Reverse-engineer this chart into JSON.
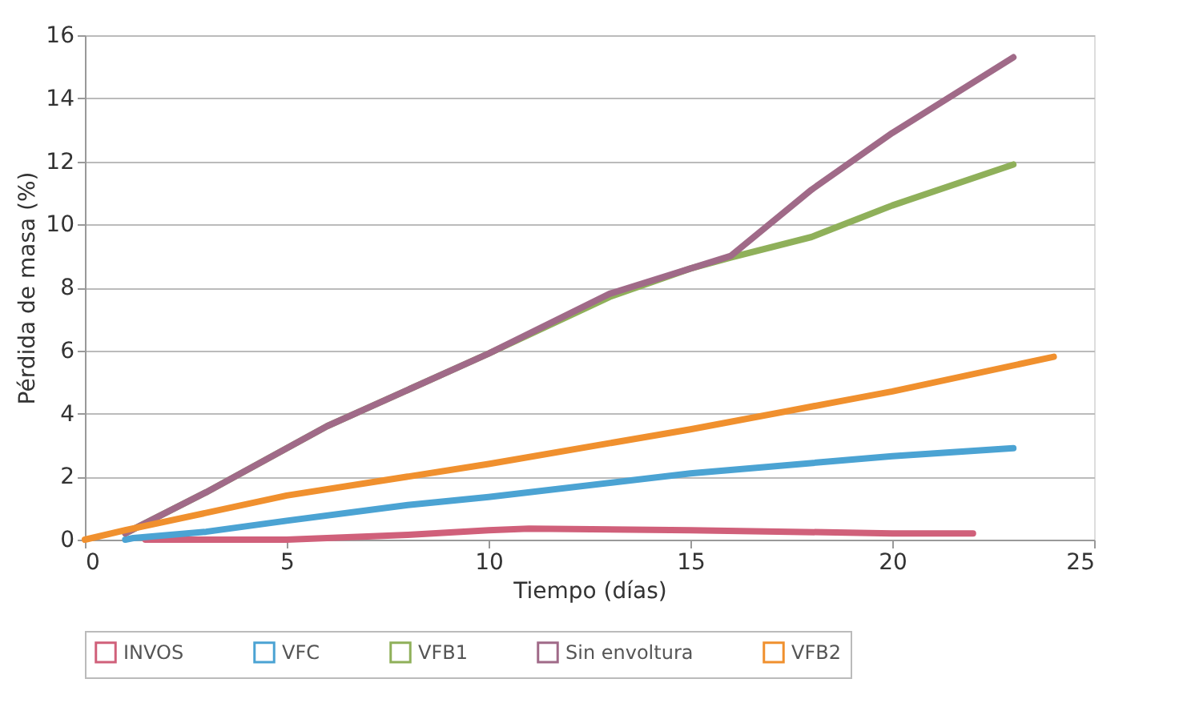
{
  "chart_data": {
    "type": "line",
    "xlabel": "Tiempo (días)",
    "ylabel": "Pérdida de masa (%)",
    "xlim": [
      0,
      25
    ],
    "xticks": [
      0,
      5,
      10,
      15,
      20,
      25
    ],
    "ylim": [
      0,
      16
    ],
    "yticks": [
      0,
      2,
      4,
      6,
      8,
      10,
      12,
      14,
      16
    ],
    "grid": "y",
    "legend": "bottom",
    "line_style": "solid",
    "marker": "none",
    "series": [
      {
        "name": "INVOS",
        "color": "#d0607a",
        "x": [
          1.5,
          3,
          5,
          8,
          10,
          11,
          15,
          20,
          22
        ],
        "values": [
          0,
          0,
          0,
          0.15,
          0.3,
          0.35,
          0.3,
          0.2,
          0.2
        ]
      },
      {
        "name": "VFC",
        "color": "#4ba3d3",
        "x": [
          1,
          1.2,
          3,
          5,
          8,
          10,
          15,
          20,
          23
        ],
        "values": [
          0,
          0.05,
          0.25,
          0.6,
          1.1,
          1.35,
          2.1,
          2.65,
          2.9
        ]
      },
      {
        "name": "VFB1",
        "color": "#8fb05a",
        "x": [
          1,
          3,
          6,
          10,
          13,
          15,
          16,
          18,
          20,
          23
        ],
        "values": [
          0.2,
          1.5,
          3.6,
          5.9,
          7.7,
          8.6,
          8.95,
          9.6,
          10.6,
          11.9
        ]
      },
      {
        "name": "Sin envoltura",
        "color": "#a06a88",
        "x": [
          1,
          3,
          6,
          10,
          13,
          15,
          16,
          18,
          20,
          23
        ],
        "values": [
          0.2,
          1.5,
          3.6,
          5.9,
          7.8,
          8.6,
          9,
          11.1,
          12.9,
          15.3
        ]
      },
      {
        "name": "VFB2",
        "color": "#f0902e",
        "x": [
          0,
          1,
          5,
          10,
          15,
          20,
          24
        ],
        "values": [
          0,
          0.3,
          1.4,
          2.4,
          3.5,
          4.7,
          5.8
        ]
      }
    ]
  }
}
